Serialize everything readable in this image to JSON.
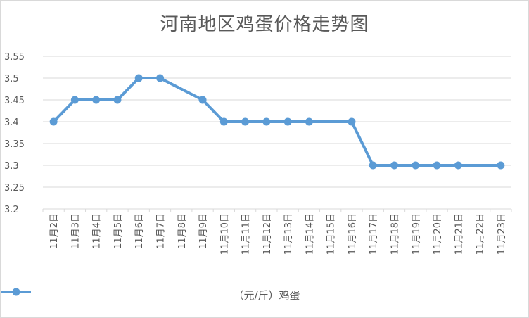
{
  "chart_data": {
    "type": "line",
    "title": "河南地区鸡蛋价格走势图",
    "categories": [
      "11月2日",
      "11月3日",
      "11月4日",
      "11月5日",
      "11月6日",
      "11月7日",
      "11月8日",
      "11月9日",
      "11月10日",
      "11月11日",
      "11月12日",
      "11月13日",
      "11月14日",
      "11月15日",
      "11月16日",
      "11月17日",
      "11月18日",
      "11月19日",
      "11月20日",
      "11月21日",
      "11月22日",
      "11月23日"
    ],
    "series": [
      {
        "name": "（元/斤）鸡蛋",
        "values": [
          3.4,
          3.45,
          3.45,
          3.45,
          3.5,
          3.5,
          null,
          3.45,
          3.4,
          3.4,
          3.4,
          3.4,
          3.4,
          null,
          3.4,
          3.3,
          3.3,
          3.3,
          3.3,
          3.3,
          null,
          3.3
        ]
      }
    ],
    "yticks": [
      "3.2",
      "3.25",
      "3.3",
      "3.35",
      "3.4",
      "3.45",
      "3.5",
      "3.55"
    ],
    "ylim": [
      3.2,
      3.55
    ],
    "grid": true,
    "legend": "bottom",
    "colors": {
      "series": "#5b9bd5",
      "grid": "#d9d9d9",
      "text": "#595959"
    }
  }
}
